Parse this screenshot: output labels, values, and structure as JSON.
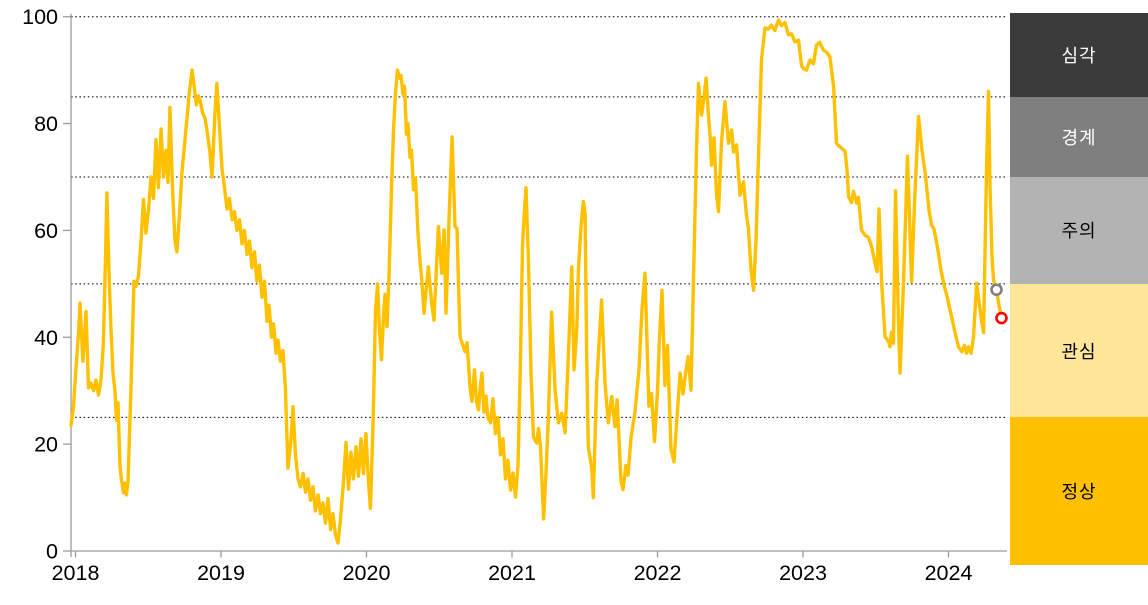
{
  "chart_data": {
    "type": "line",
    "title": "",
    "xlabel": "",
    "ylabel": "",
    "ylim": [
      0,
      100
    ],
    "xlim": [
      2018.0,
      2024.42
    ],
    "grid": "dotted-horizontal",
    "gridlines_y": [
      25,
      50,
      70,
      85,
      100
    ],
    "line_color": "#FFC000",
    "line_width": 3.4,
    "axis_color": "#9B9B9B",
    "axis": {
      "y_ticks": [
        0,
        20,
        40,
        60,
        80,
        100
      ],
      "x_ticks": [
        "2018",
        "2019",
        "2020",
        "2021",
        "2022",
        "2023",
        "2024"
      ]
    },
    "series_points_note": "weekly stress index, decimal-year vs value (0-100)",
    "points": [
      [
        2018.0,
        23.5
      ],
      [
        2018.017,
        27
      ],
      [
        2018.034,
        34
      ],
      [
        2018.052,
        41
      ],
      [
        2018.062,
        46.4
      ],
      [
        2018.082,
        35.5
      ],
      [
        2018.103,
        44.8
      ],
      [
        2018.12,
        30.5
      ],
      [
        2018.137,
        31.4
      ],
      [
        2018.155,
        30
      ],
      [
        2018.172,
        32
      ],
      [
        2018.189,
        29.2
      ],
      [
        2018.206,
        32
      ],
      [
        2018.223,
        39
      ],
      [
        2018.237,
        55
      ],
      [
        2018.247,
        67
      ],
      [
        2018.261,
        52
      ],
      [
        2018.275,
        41.4
      ],
      [
        2018.289,
        33.3
      ],
      [
        2018.302,
        30.1
      ],
      [
        2018.313,
        24.5
      ],
      [
        2018.323,
        27.7
      ],
      [
        2018.337,
        15.8
      ],
      [
        2018.347,
        13.3
      ],
      [
        2018.361,
        10.9
      ],
      [
        2018.371,
        12.7
      ],
      [
        2018.381,
        10.5
      ],
      [
        2018.392,
        13
      ],
      [
        2018.402,
        22
      ],
      [
        2018.412,
        30
      ],
      [
        2018.423,
        41
      ],
      [
        2018.433,
        50.5
      ],
      [
        2018.447,
        49.5
      ],
      [
        2018.464,
        51.5
      ],
      [
        2018.481,
        58
      ],
      [
        2018.498,
        65.8
      ],
      [
        2018.515,
        59.5
      ],
      [
        2018.533,
        64
      ],
      [
        2018.55,
        70
      ],
      [
        2018.567,
        66
      ],
      [
        2018.584,
        77
      ],
      [
        2018.601,
        68
      ],
      [
        2018.619,
        79
      ],
      [
        2018.636,
        70
      ],
      [
        2018.653,
        75
      ],
      [
        2018.667,
        69
      ],
      [
        2018.68,
        83
      ],
      [
        2018.698,
        67.5
      ],
      [
        2018.715,
        58
      ],
      [
        2018.728,
        56
      ],
      [
        2018.746,
        63
      ],
      [
        2018.763,
        71
      ],
      [
        2018.78,
        76
      ],
      [
        2018.797,
        81
      ],
      [
        2018.814,
        86
      ],
      [
        2018.832,
        90
      ],
      [
        2018.849,
        86.5
      ],
      [
        2018.862,
        83.5
      ],
      [
        2018.876,
        85.2
      ],
      [
        2018.89,
        84
      ],
      [
        2018.904,
        82
      ],
      [
        2018.921,
        81
      ],
      [
        2018.938,
        78
      ],
      [
        2018.955,
        74.5
      ],
      [
        2018.969,
        70
      ],
      [
        2018.99,
        82
      ],
      [
        2019.003,
        87.5
      ],
      [
        2019.021,
        79
      ],
      [
        2019.038,
        71.5
      ],
      [
        2019.055,
        68
      ],
      [
        2019.072,
        64
      ],
      [
        2019.089,
        66
      ],
      [
        2019.107,
        62
      ],
      [
        2019.124,
        63.5
      ],
      [
        2019.141,
        60
      ],
      [
        2019.158,
        62
      ],
      [
        2019.175,
        57.5
      ],
      [
        2019.192,
        60
      ],
      [
        2019.21,
        55.5
      ],
      [
        2019.227,
        58
      ],
      [
        2019.244,
        53
      ],
      [
        2019.261,
        56
      ],
      [
        2019.278,
        50.5
      ],
      [
        2019.295,
        53.5
      ],
      [
        2019.313,
        47.5
      ],
      [
        2019.33,
        50.5
      ],
      [
        2019.347,
        43
      ],
      [
        2019.361,
        46
      ],
      [
        2019.378,
        40
      ],
      [
        2019.392,
        42.5
      ],
      [
        2019.409,
        37
      ],
      [
        2019.423,
        39.5
      ],
      [
        2019.44,
        35.5
      ],
      [
        2019.457,
        37.5
      ],
      [
        2019.474,
        30
      ],
      [
        2019.491,
        15.5
      ],
      [
        2019.509,
        20
      ],
      [
        2019.526,
        27
      ],
      [
        2019.543,
        18
      ],
      [
        2019.56,
        13.5
      ],
      [
        2019.577,
        12
      ],
      [
        2019.595,
        14.5
      ],
      [
        2019.612,
        11
      ],
      [
        2019.629,
        13.5
      ],
      [
        2019.646,
        9.5
      ],
      [
        2019.663,
        12
      ],
      [
        2019.68,
        7.5
      ],
      [
        2019.698,
        10.5
      ],
      [
        2019.715,
        7
      ],
      [
        2019.732,
        9
      ],
      [
        2019.749,
        5.2
      ],
      [
        2019.766,
        9.8
      ],
      [
        2019.784,
        4
      ],
      [
        2019.801,
        7
      ],
      [
        2019.818,
        3
      ],
      [
        2019.835,
        1.5
      ],
      [
        2019.852,
        6
      ],
      [
        2019.873,
        13
      ],
      [
        2019.89,
        20.3
      ],
      [
        2019.907,
        11.6
      ],
      [
        2019.924,
        18.5
      ],
      [
        2019.941,
        13.5
      ],
      [
        2019.959,
        19.5
      ],
      [
        2019.976,
        14
      ],
      [
        2019.993,
        21
      ],
      [
        2020.01,
        14.5
      ],
      [
        2020.027,
        22
      ],
      [
        2020.045,
        13
      ],
      [
        2020.058,
        8
      ],
      [
        2020.076,
        24
      ],
      [
        2020.093,
        45
      ],
      [
        2020.107,
        50
      ],
      [
        2020.12,
        41
      ],
      [
        2020.134,
        35.8
      ],
      [
        2020.148,
        44
      ],
      [
        2020.158,
        48
      ],
      [
        2020.172,
        42
      ],
      [
        2020.186,
        52
      ],
      [
        2020.203,
        68
      ],
      [
        2020.217,
        79
      ],
      [
        2020.231,
        86
      ],
      [
        2020.244,
        90
      ],
      [
        2020.258,
        88.5
      ],
      [
        2020.268,
        89
      ],
      [
        2020.282,
        85.5
      ],
      [
        2020.292,
        87
      ],
      [
        2020.306,
        78
      ],
      [
        2020.316,
        80
      ],
      [
        2020.33,
        73.7
      ],
      [
        2020.34,
        75
      ],
      [
        2020.354,
        67.6
      ],
      [
        2020.368,
        69.8
      ],
      [
        2020.385,
        59.5
      ],
      [
        2020.399,
        54
      ],
      [
        2020.411,
        50.7
      ],
      [
        2020.426,
        44.5
      ],
      [
        2020.456,
        53.2
      ],
      [
        2020.479,
        46.4
      ],
      [
        2020.495,
        43.2
      ],
      [
        2020.525,
        60.7
      ],
      [
        2020.548,
        52
      ],
      [
        2020.564,
        60.1
      ],
      [
        2020.577,
        44.5
      ],
      [
        2020.598,
        62
      ],
      [
        2020.619,
        77.5
      ],
      [
        2020.639,
        60.7
      ],
      [
        2020.653,
        60.4
      ],
      [
        2020.662,
        51.3
      ],
      [
        2020.674,
        40.1
      ],
      [
        2020.696,
        38.2
      ],
      [
        2020.708,
        37.3
      ],
      [
        2020.722,
        39
      ],
      [
        2020.742,
        30.7
      ],
      [
        2020.756,
        28
      ],
      [
        2020.773,
        33.9
      ],
      [
        2020.787,
        28
      ],
      [
        2020.801,
        26.4
      ],
      [
        2020.814,
        31
      ],
      [
        2020.825,
        33.3
      ],
      [
        2020.838,
        26
      ],
      [
        2020.852,
        29
      ],
      [
        2020.866,
        24.9
      ],
      [
        2020.883,
        24
      ],
      [
        2020.9,
        28.5
      ],
      [
        2020.917,
        22
      ],
      [
        2020.935,
        25
      ],
      [
        2020.952,
        18
      ],
      [
        2020.969,
        21
      ],
      [
        2020.986,
        13.5
      ],
      [
        2021.003,
        17
      ],
      [
        2021.021,
        11.4
      ],
      [
        2021.038,
        14.6
      ],
      [
        2021.055,
        10.1
      ],
      [
        2021.072,
        16
      ],
      [
        2021.089,
        35
      ],
      [
        2021.103,
        57
      ],
      [
        2021.113,
        62
      ],
      [
        2021.127,
        68
      ],
      [
        2021.144,
        54
      ],
      [
        2021.162,
        33
      ],
      [
        2021.179,
        21.3
      ],
      [
        2021.2,
        20.2
      ],
      [
        2021.213,
        22.9
      ],
      [
        2021.227,
        19.5
      ],
      [
        2021.248,
        6
      ],
      [
        2021.265,
        15
      ],
      [
        2021.282,
        25.8
      ],
      [
        2021.303,
        44.7
      ],
      [
        2021.327,
        30.1
      ],
      [
        2021.35,
        24
      ],
      [
        2021.373,
        25.8
      ],
      [
        2021.396,
        22.1
      ],
      [
        2021.416,
        35
      ],
      [
        2021.442,
        53.2
      ],
      [
        2021.457,
        33.9
      ],
      [
        2021.476,
        41.4
      ],
      [
        2021.487,
        52.6
      ],
      [
        2021.505,
        60.7
      ],
      [
        2021.521,
        65.4
      ],
      [
        2021.533,
        63.2
      ],
      [
        2021.544,
        36.4
      ],
      [
        2021.555,
        19.5
      ],
      [
        2021.579,
        15.5
      ],
      [
        2021.59,
        10
      ],
      [
        2021.601,
        20.2
      ],
      [
        2021.613,
        31.4
      ],
      [
        2021.624,
        36.4
      ],
      [
        2021.647,
        47
      ],
      [
        2021.67,
        31.4
      ],
      [
        2021.693,
        24
      ],
      [
        2021.716,
        28.9
      ],
      [
        2021.739,
        23.3
      ],
      [
        2021.753,
        28.3
      ],
      [
        2021.78,
        13
      ],
      [
        2021.794,
        11.5
      ],
      [
        2021.814,
        16
      ],
      [
        2021.828,
        14.2
      ],
      [
        2021.849,
        21.2
      ],
      [
        2021.876,
        26
      ],
      [
        2021.904,
        34
      ],
      [
        2021.924,
        45
      ],
      [
        2021.945,
        52
      ],
      [
        2021.972,
        27.1
      ],
      [
        2021.99,
        29.5
      ],
      [
        2022.01,
        20.5
      ],
      [
        2022.031,
        30
      ],
      [
        2022.045,
        40
      ],
      [
        2022.062,
        48.8
      ],
      [
        2022.082,
        31
      ],
      [
        2022.1,
        38.5
      ],
      [
        2022.124,
        19
      ],
      [
        2022.144,
        16.7
      ],
      [
        2022.165,
        25
      ],
      [
        2022.186,
        33.3
      ],
      [
        2022.206,
        29.4
      ],
      [
        2022.223,
        33
      ],
      [
        2022.241,
        36.4
      ],
      [
        2022.261,
        30.1
      ],
      [
        2022.282,
        55
      ],
      [
        2022.299,
        75
      ],
      [
        2022.313,
        87.5
      ],
      [
        2022.334,
        81.6
      ],
      [
        2022.351,
        85
      ],
      [
        2022.365,
        88.5
      ],
      [
        2022.382,
        81
      ],
      [
        2022.392,
        78
      ],
      [
        2022.402,
        72.2
      ],
      [
        2022.419,
        77.3
      ],
      [
        2022.437,
        66.6
      ],
      [
        2022.45,
        63.5
      ],
      [
        2022.471,
        76.6
      ],
      [
        2022.495,
        84.1
      ],
      [
        2022.519,
        76.3
      ],
      [
        2022.54,
        78.8
      ],
      [
        2022.553,
        74.7
      ],
      [
        2022.574,
        76
      ],
      [
        2022.598,
        66.6
      ],
      [
        2022.622,
        69.1
      ],
      [
        2022.642,
        62.9
      ],
      [
        2022.656,
        60.4
      ],
      [
        2022.673,
        53
      ],
      [
        2022.691,
        48.8
      ],
      [
        2022.708,
        58
      ],
      [
        2022.725,
        74
      ],
      [
        2022.746,
        92
      ],
      [
        2022.77,
        97.9
      ],
      [
        2022.794,
        97.7
      ],
      [
        2022.814,
        98.4
      ],
      [
        2022.838,
        97.4
      ],
      [
        2022.863,
        99.4
      ],
      [
        2022.883,
        98.3
      ],
      [
        2022.907,
        98.9
      ],
      [
        2022.931,
        96.6
      ],
      [
        2022.952,
        96.8
      ],
      [
        2022.976,
        95.3
      ],
      [
        2023.0,
        95.6
      ],
      [
        2023.021,
        90.8
      ],
      [
        2023.038,
        90.2
      ],
      [
        2023.055,
        90
      ],
      [
        2023.079,
        91.9
      ],
      [
        2023.103,
        91.2
      ],
      [
        2023.124,
        94.7
      ],
      [
        2023.144,
        95.2
      ],
      [
        2023.172,
        93.7
      ],
      [
        2023.192,
        93.4
      ],
      [
        2023.216,
        92.5
      ],
      [
        2023.241,
        86.9
      ],
      [
        2023.261,
        76.3
      ],
      [
        2023.278,
        75.8
      ],
      [
        2023.296,
        75.4
      ],
      [
        2023.32,
        74.8
      ],
      [
        2023.333,
        71.3
      ],
      [
        2023.344,
        66.3
      ],
      [
        2023.364,
        65.2
      ],
      [
        2023.378,
        67.3
      ],
      [
        2023.399,
        65.1
      ],
      [
        2023.412,
        66.2
      ],
      [
        2023.433,
        60.1
      ],
      [
        2023.457,
        59.1
      ],
      [
        2023.481,
        58.7
      ],
      [
        2023.502,
        57
      ],
      [
        2023.526,
        53.9
      ],
      [
        2023.54,
        52.3
      ],
      [
        2023.553,
        64
      ],
      [
        2023.571,
        50.3
      ],
      [
        2023.595,
        40.1
      ],
      [
        2023.619,
        39.2
      ],
      [
        2023.629,
        38.2
      ],
      [
        2023.639,
        41
      ],
      [
        2023.653,
        38.9
      ],
      [
        2023.667,
        67.4
      ],
      [
        2023.687,
        42.6
      ],
      [
        2023.698,
        33.3
      ],
      [
        2023.722,
        50.9
      ],
      [
        2023.749,
        73.9
      ],
      [
        2023.777,
        50.4
      ],
      [
        2023.797,
        65
      ],
      [
        2023.825,
        81.3
      ],
      [
        2023.849,
        75
      ],
      [
        2023.873,
        70.2
      ],
      [
        2023.897,
        63.8
      ],
      [
        2023.914,
        61
      ],
      [
        2023.931,
        60.3
      ],
      [
        2023.959,
        56.3
      ],
      [
        2023.979,
        52.6
      ],
      [
        2024.003,
        49.5
      ],
      [
        2024.021,
        47.6
      ],
      [
        2024.041,
        45.1
      ],
      [
        2024.058,
        43.2
      ],
      [
        2024.076,
        40.8
      ],
      [
        2024.1,
        38.2
      ],
      [
        2024.124,
        37.3
      ],
      [
        2024.141,
        38.5
      ],
      [
        2024.155,
        37
      ],
      [
        2024.169,
        38.2
      ],
      [
        2024.186,
        37
      ],
      [
        2024.203,
        40
      ],
      [
        2024.224,
        50.1
      ],
      [
        2024.248,
        45.1
      ],
      [
        2024.261,
        42.6
      ],
      [
        2024.272,
        40.9
      ],
      [
        2024.292,
        71.3
      ],
      [
        2024.306,
        86
      ],
      [
        2024.316,
        68.2
      ],
      [
        2024.33,
        55.1
      ],
      [
        2024.34,
        50.7
      ],
      [
        2024.351,
        49.8
      ],
      [
        2024.361,
        48.9
      ],
      [
        2024.375,
        46.4
      ],
      [
        2024.395,
        43.6
      ]
    ],
    "markers": [
      {
        "x": 2024.361,
        "y": 48.9,
        "color": "#808080",
        "name": "previous-point-marker"
      },
      {
        "x": 2024.395,
        "y": 43.6,
        "color": "#FF0000",
        "name": "latest-point-marker"
      }
    ],
    "legend_position": "right",
    "zones": [
      {
        "key": "simgak",
        "label": "심각",
        "from": 85,
        "to": 100,
        "color": "#3B3B3B",
        "text_color": "#FFFFFF"
      },
      {
        "key": "gyeonggye",
        "label": "경계",
        "from": 70,
        "to": 85,
        "color": "#7F7F7F",
        "text_color": "#FFFFFF"
      },
      {
        "key": "juui",
        "label": "주의",
        "from": 50,
        "to": 70,
        "color": "#B3B3B3",
        "text_color": "#000000"
      },
      {
        "key": "gwansim",
        "label": "관심",
        "from": 25,
        "to": 50,
        "color": "#FFE699",
        "text_color": "#000000"
      },
      {
        "key": "jeongsang",
        "label": "정상",
        "from": 0,
        "to": 25,
        "color": "#FFC000",
        "text_color": "#000000"
      }
    ]
  }
}
